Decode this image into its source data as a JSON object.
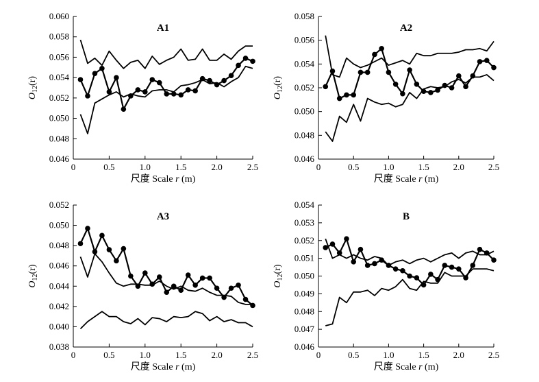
{
  "chart_data": [
    {
      "type": "line",
      "title": "A1",
      "xlabel_cn": "尺度",
      "xlabel_en": "Scale",
      "xlabel_var": "r",
      "xlabel_unit": "(m)",
      "ylabel_sym": "O",
      "ylabel_sub": "12",
      "ylabel_arg": "(r)",
      "xlim": [
        0,
        2.5
      ],
      "ylim": [
        0.046,
        0.06
      ],
      "xticks": [
        "0",
        "0.5",
        "1.0",
        "1.5",
        "2.0",
        "2.5"
      ],
      "yticks": [
        "0.046",
        "0.048",
        "0.050",
        "0.052",
        "0.054",
        "0.056",
        "0.058",
        "0.060"
      ],
      "x": [
        0.1,
        0.2,
        0.3,
        0.4,
        0.5,
        0.6,
        0.7,
        0.8,
        0.9,
        1.0,
        1.1,
        1.2,
        1.3,
        1.4,
        1.5,
        1.6,
        1.7,
        1.8,
        1.9,
        2.0,
        2.1,
        2.2,
        2.3,
        2.4,
        2.5
      ],
      "series": [
        {
          "marker": true,
          "values": [
            0.0538,
            0.0522,
            0.0544,
            0.0549,
            0.0526,
            0.054,
            0.0509,
            0.0522,
            0.0528,
            0.0526,
            0.0538,
            0.0535,
            0.0524,
            0.0524,
            0.0523,
            0.0528,
            0.0527,
            0.0539,
            0.0537,
            0.0533,
            0.0537,
            0.0542,
            0.0552,
            0.0559,
            0.0556
          ]
        },
        {
          "marker": false,
          "values": [
            0.0577,
            0.0554,
            0.0559,
            0.0552,
            0.0566,
            0.0557,
            0.0549,
            0.0555,
            0.0557,
            0.0549,
            0.0561,
            0.0553,
            0.0557,
            0.056,
            0.0568,
            0.0557,
            0.0558,
            0.0568,
            0.0557,
            0.0557,
            0.0563,
            0.0558,
            0.0566,
            0.0571,
            0.0571
          ]
        },
        {
          "marker": false,
          "values": [
            0.0504,
            0.0485,
            0.0515,
            0.0519,
            0.0523,
            0.0526,
            0.0521,
            0.0524,
            0.0522,
            0.0521,
            0.0527,
            0.0528,
            0.0528,
            0.0526,
            0.0532,
            0.0533,
            0.0535,
            0.0538,
            0.0534,
            0.0535,
            0.0531,
            0.0536,
            0.054,
            0.0551,
            0.0549
          ]
        }
      ]
    },
    {
      "type": "line",
      "title": "A2",
      "xlabel_cn": "尺度",
      "xlabel_en": "Scale",
      "xlabel_var": "r",
      "xlabel_unit": "(m)",
      "ylabel_sym": "O",
      "ylabel_sub": "12",
      "ylabel_arg": "(r)",
      "xlim": [
        0,
        2.5
      ],
      "ylim": [
        0.046,
        0.058
      ],
      "xticks": [
        "0",
        "0.5",
        "1.0",
        "1.5",
        "2.0",
        "2.5"
      ],
      "yticks": [
        "0.046",
        "0.048",
        "0.050",
        "0.052",
        "0.054",
        "0.056",
        "0.058"
      ],
      "x": [
        0.1,
        0.2,
        0.3,
        0.4,
        0.5,
        0.6,
        0.7,
        0.8,
        0.9,
        1.0,
        1.1,
        1.2,
        1.3,
        1.4,
        1.5,
        1.6,
        1.7,
        1.8,
        1.9,
        2.0,
        2.1,
        2.2,
        2.3,
        2.4,
        2.5
      ],
      "series": [
        {
          "marker": true,
          "values": [
            0.0521,
            0.0534,
            0.0511,
            0.0514,
            0.0514,
            0.0533,
            0.0533,
            0.0548,
            0.0553,
            0.0533,
            0.0523,
            0.0515,
            0.0535,
            0.0523,
            0.0517,
            0.0516,
            0.0518,
            0.0522,
            0.052,
            0.053,
            0.0521,
            0.053,
            0.0542,
            0.0543,
            0.0537
          ]
        },
        {
          "marker": false,
          "values": [
            0.0564,
            0.0531,
            0.0529,
            0.0545,
            0.054,
            0.0537,
            0.0539,
            0.0542,
            0.0545,
            0.0539,
            0.0541,
            0.0543,
            0.054,
            0.0549,
            0.0547,
            0.0547,
            0.0549,
            0.0549,
            0.0549,
            0.055,
            0.0552,
            0.0552,
            0.0553,
            0.0551,
            0.0559
          ]
        },
        {
          "marker": false,
          "values": [
            0.0483,
            0.0475,
            0.0496,
            0.0491,
            0.0506,
            0.0492,
            0.0511,
            0.0508,
            0.0506,
            0.0507,
            0.0504,
            0.0506,
            0.0516,
            0.0511,
            0.0519,
            0.0521,
            0.052,
            0.0521,
            0.0525,
            0.0527,
            0.0524,
            0.0529,
            0.0529,
            0.0531,
            0.0526
          ]
        }
      ]
    },
    {
      "type": "line",
      "title": "A3",
      "xlabel_cn": "尺度",
      "xlabel_en": "Scale",
      "xlabel_var": "r",
      "xlabel_unit": "(m)",
      "ylabel_sym": "O",
      "ylabel_sub": "12",
      "ylabel_arg": "(r)",
      "xlim": [
        0,
        2.5
      ],
      "ylim": [
        0.038,
        0.052
      ],
      "xticks": [
        "0",
        "0.5",
        "1.0",
        "1.5",
        "2.0",
        "2.5"
      ],
      "yticks": [
        "0.038",
        "0.040",
        "0.042",
        "0.044",
        "0.046",
        "0.048",
        "0.050",
        "0.052"
      ],
      "x": [
        0.1,
        0.2,
        0.3,
        0.4,
        0.5,
        0.6,
        0.7,
        0.8,
        0.9,
        1.0,
        1.1,
        1.2,
        1.3,
        1.4,
        1.5,
        1.6,
        1.7,
        1.8,
        1.9,
        2.0,
        2.1,
        2.2,
        2.3,
        2.4,
        2.5
      ],
      "series": [
        {
          "marker": true,
          "values": [
            0.0482,
            0.0497,
            0.0474,
            0.049,
            0.0476,
            0.0465,
            0.0477,
            0.045,
            0.044,
            0.0453,
            0.0442,
            0.0449,
            0.0434,
            0.044,
            0.0436,
            0.0451,
            0.0441,
            0.0448,
            0.0448,
            0.0438,
            0.0429,
            0.0438,
            0.0441,
            0.0427,
            0.0421
          ]
        },
        {
          "marker": false,
          "values": [
            0.0469,
            0.0449,
            0.0472,
            0.0464,
            0.0453,
            0.0443,
            0.044,
            0.0442,
            0.0442,
            0.0441,
            0.0441,
            0.0445,
            0.044,
            0.0437,
            0.044,
            0.0436,
            0.0435,
            0.0438,
            0.0434,
            0.0431,
            0.0431,
            0.043,
            0.0424,
            0.0422,
            0.0422
          ]
        },
        {
          "marker": false,
          "values": [
            0.0398,
            0.0405,
            0.041,
            0.0415,
            0.041,
            0.041,
            0.0405,
            0.0403,
            0.0408,
            0.0402,
            0.0409,
            0.0408,
            0.0405,
            0.041,
            0.0409,
            0.041,
            0.0415,
            0.0413,
            0.0406,
            0.041,
            0.0405,
            0.0407,
            0.0404,
            0.0404,
            0.04
          ]
        }
      ]
    },
    {
      "type": "line",
      "title": "B",
      "xlabel_cn": "尺度",
      "xlabel_en": "Scale",
      "xlabel_var": "r",
      "xlabel_unit": "(m)",
      "ylabel_sym": "O",
      "ylabel_sub": "12",
      "ylabel_arg": "(r)",
      "xlim": [
        0,
        2.5
      ],
      "ylim": [
        0.046,
        0.054
      ],
      "xticks": [
        "0",
        "0.5",
        "1.0",
        "1.5",
        "2.0",
        "2.5"
      ],
      "yticks": [
        "0.046",
        "0.047",
        "0.048",
        "0.049",
        "0.050",
        "0.051",
        "0.052",
        "0.053",
        "0.054"
      ],
      "x": [
        0.1,
        0.2,
        0.3,
        0.4,
        0.5,
        0.6,
        0.7,
        0.8,
        0.9,
        1.0,
        1.1,
        1.2,
        1.3,
        1.4,
        1.5,
        1.6,
        1.7,
        1.8,
        1.9,
        2.0,
        2.1,
        2.2,
        2.3,
        2.4,
        2.5
      ],
      "series": [
        {
          "marker": true,
          "values": [
            0.0516,
            0.0518,
            0.0513,
            0.0521,
            0.0508,
            0.0515,
            0.0506,
            0.0507,
            0.0509,
            0.0506,
            0.0504,
            0.0503,
            0.05,
            0.0499,
            0.0495,
            0.0501,
            0.0498,
            0.0506,
            0.0505,
            0.0504,
            0.0499,
            0.0506,
            0.0515,
            0.0513,
            0.0509
          ]
        },
        {
          "marker": false,
          "values": [
            0.0521,
            0.051,
            0.0512,
            0.051,
            0.0512,
            0.051,
            0.0509,
            0.0511,
            0.051,
            0.0506,
            0.0508,
            0.0509,
            0.0507,
            0.0509,
            0.051,
            0.0508,
            0.051,
            0.0512,
            0.0513,
            0.051,
            0.0513,
            0.0514,
            0.0512,
            0.0512,
            0.0514
          ]
        },
        {
          "marker": false,
          "values": [
            0.0472,
            0.0473,
            0.0488,
            0.0485,
            0.0491,
            0.0491,
            0.0492,
            0.0489,
            0.0493,
            0.0492,
            0.0494,
            0.0498,
            0.0493,
            0.0492,
            0.0497,
            0.0496,
            0.0496,
            0.0502,
            0.05,
            0.05,
            0.05,
            0.0504,
            0.0504,
            0.0504,
            0.0503
          ]
        }
      ]
    }
  ]
}
